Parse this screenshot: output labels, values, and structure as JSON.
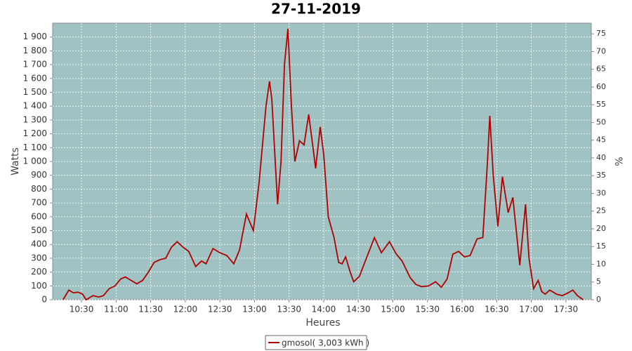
{
  "chart_data": {
    "type": "line",
    "title": "27-11-2019",
    "x_label": "Heures",
    "y_label": "Watts",
    "y2_label": "%",
    "background": "#a0c2c2",
    "grid": true,
    "legend": "bottom",
    "xlim": [
      "10:05",
      "17:52"
    ],
    "xticks": [
      "10:30",
      "11:00",
      "11:30",
      "12:00",
      "12:30",
      "13:00",
      "13:30",
      "14:00",
      "14:30",
      "15:00",
      "15:30",
      "16:00",
      "16:30",
      "17:00",
      "17:30"
    ],
    "ylim": [
      0,
      2000
    ],
    "yticks": [
      0,
      100,
      200,
      300,
      400,
      500,
      600,
      700,
      800,
      900,
      {
        "value": 1000,
        "label": "1 000"
      },
      {
        "value": 1100,
        "label": "1 100"
      },
      {
        "value": 1200,
        "label": "1 200"
      },
      {
        "value": 1300,
        "label": "1 300"
      },
      {
        "value": 1400,
        "label": "1 400"
      },
      {
        "value": 1500,
        "label": "1 500"
      },
      {
        "value": 1600,
        "label": "1 600"
      },
      {
        "value": 1700,
        "label": "1 700"
      },
      {
        "value": 1800,
        "label": "1 800"
      },
      {
        "value": 1900,
        "label": "1 900"
      }
    ],
    "y2lim": [
      0,
      78
    ],
    "y2ticks": [
      0,
      5,
      10,
      15,
      20,
      25,
      30,
      35,
      40,
      45,
      50,
      55,
      60,
      65,
      70,
      75
    ],
    "series": [
      {
        "name": "gmosol( 3,003 kWh )",
        "color": "#b00000",
        "x": [
          "10:14",
          "10:19",
          "10:23",
          "10:27",
          "10:31",
          "10:34",
          "10:40",
          "10:45",
          "10:49",
          "10:54",
          "10:59",
          "11:04",
          "11:08",
          "11:13",
          "11:18",
          "11:23",
          "11:28",
          "11:33",
          "11:38",
          "11:43",
          "11:48",
          "11:53",
          "11:58",
          "12:03",
          "12:09",
          "12:14",
          "12:18",
          "12:24",
          "12:30",
          "12:36",
          "12:42",
          "12:47",
          "12:53",
          "12:59",
          "13:04",
          "13:10",
          "13:13",
          "13:15",
          "13:20",
          "13:23",
          "13:26",
          "13:29",
          "13:32",
          "13:35",
          "13:39",
          "13:43",
          "13:47",
          "13:50",
          "13:53",
          "13:57",
          "14:00",
          "14:04",
          "14:09",
          "14:13",
          "14:16",
          "14:19",
          "14:23",
          "14:26",
          "14:31",
          "14:37",
          "14:44",
          "14:50",
          "14:57",
          "15:03",
          "15:08",
          "15:15",
          "15:20",
          "15:25",
          "15:31",
          "15:37",
          "15:42",
          "15:47",
          "15:52",
          "15:57",
          "16:02",
          "16:07",
          "16:13",
          "16:18",
          "16:22",
          "16:24",
          "16:27",
          "16:31",
          "16:35",
          "16:40",
          "16:44",
          "16:47",
          "16:50",
          "16:55",
          "16:58",
          "17:02",
          "17:06",
          "17:09",
          "17:12",
          "17:16",
          "17:22",
          "17:27",
          "17:32",
          "17:36",
          "17:40",
          "17:45"
        ],
        "values": [
          0,
          70,
          50,
          55,
          40,
          0,
          30,
          20,
          30,
          80,
          100,
          150,
          165,
          140,
          115,
          140,
          200,
          270,
          290,
          300,
          380,
          420,
          380,
          350,
          240,
          280,
          260,
          370,
          340,
          320,
          260,
          360,
          620,
          500,
          850,
          1400,
          1580,
          1450,
          690,
          1000,
          1700,
          1960,
          1400,
          1000,
          1150,
          1120,
          1340,
          1150,
          950,
          1250,
          1050,
          600,
          450,
          270,
          260,
          310,
          200,
          130,
          170,
          300,
          450,
          340,
          420,
          330,
          280,
          160,
          110,
          95,
          100,
          130,
          90,
          150,
          330,
          350,
          310,
          320,
          440,
          450,
          1000,
          1330,
          900,
          530,
          890,
          630,
          740,
          500,
          250,
          690,
          300,
          80,
          140,
          60,
          40,
          70,
          40,
          30,
          50,
          70,
          30,
          0
        ]
      }
    ]
  }
}
